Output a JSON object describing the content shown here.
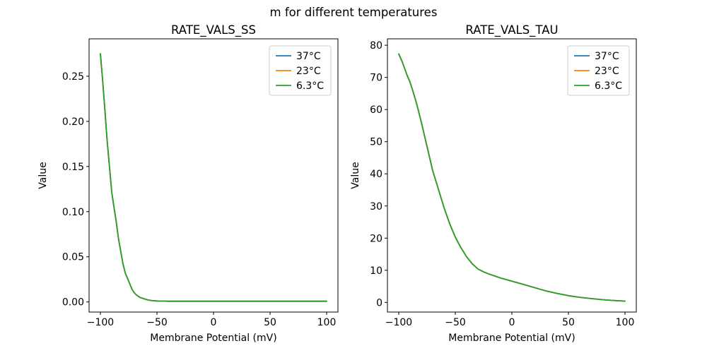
{
  "figure": {
    "suptitle": "m for different temperatures",
    "background": "#ffffff",
    "text_color": "#000000"
  },
  "chart_data": [
    {
      "type": "line",
      "title": "RATE_VALS_SS",
      "xlabel": "Membrane Potential (mV)",
      "ylabel": "Value",
      "xlim": [
        -110,
        110
      ],
      "ylim": [
        -0.0112,
        0.2914
      ],
      "xticks": [
        -100,
        -50,
        0,
        50,
        100
      ],
      "xtick_labels": [
        "−100",
        "−50",
        "0",
        "50",
        "100"
      ],
      "yticks": [
        0.0,
        0.05,
        0.1,
        0.15,
        0.2,
        0.25
      ],
      "ytick_labels": [
        "0.00",
        "0.05",
        "0.10",
        "0.15",
        "0.20",
        "0.25"
      ],
      "grid": false,
      "legend_position": "upper right",
      "series_overlap_note": "All three temperature curves coincide exactly; only the last-drawn (6.3°C, green) is visible.",
      "series": [
        {
          "name": "37C",
          "label": "37°C",
          "color": "#1f77b4"
        },
        {
          "name": "23C",
          "label": "23°C",
          "color": "#ff7f0e"
        },
        {
          "name": "6.3C",
          "label": "6.3°C",
          "color": "#2ca02c"
        }
      ],
      "x": [
        -100,
        -98,
        -96,
        -94,
        -92,
        -90,
        -88,
        -86,
        -84,
        -82,
        -80,
        -78,
        -76,
        -74,
        -72,
        -70,
        -68,
        -65,
        -62,
        -58,
        -54,
        -50,
        -45,
        -40,
        -30,
        -20,
        -10,
        0,
        20,
        40,
        60,
        80,
        100
      ],
      "y_shared": [
        0.275,
        0.245,
        0.212,
        0.178,
        0.15,
        0.122,
        0.105,
        0.089,
        0.07,
        0.056,
        0.042,
        0.032,
        0.026,
        0.02,
        0.014,
        0.01,
        0.0076,
        0.005,
        0.0037,
        0.0022,
        0.0014,
        0.0011,
        0.0009,
        0.0008,
        0.0008,
        0.0008,
        0.0008,
        0.0008,
        0.0008,
        0.0008,
        0.0008,
        0.0008,
        0.0008
      ]
    },
    {
      "type": "line",
      "title": "RATE_VALS_TAU",
      "xlabel": "Membrane Potential (mV)",
      "ylabel": "Value",
      "xlim": [
        -110,
        110
      ],
      "ylim": [
        -3.0,
        82.0
      ],
      "xticks": [
        -100,
        -50,
        0,
        50,
        100
      ],
      "xtick_labels": [
        "−100",
        "−50",
        "0",
        "50",
        "100"
      ],
      "yticks": [
        0,
        10,
        20,
        30,
        40,
        50,
        60,
        70,
        80
      ],
      "ytick_labels": [
        "0",
        "10",
        "20",
        "30",
        "40",
        "50",
        "60",
        "70",
        "80"
      ],
      "grid": false,
      "legend_position": "upper right",
      "series_overlap_note": "All three temperature curves coincide exactly; only the last-drawn (6.3°C, green) is visible.",
      "series": [
        {
          "name": "37C",
          "label": "37°C",
          "color": "#1f77b4"
        },
        {
          "name": "23C",
          "label": "23°C",
          "color": "#ff7f0e"
        },
        {
          "name": "6.3C",
          "label": "6.3°C",
          "color": "#2ca02c"
        }
      ],
      "x": [
        -100,
        -97,
        -95,
        -93,
        -90,
        -88,
        -85,
        -83,
        -80,
        -78,
        -75,
        -72,
        -70,
        -65,
        -60,
        -55,
        -50,
        -45,
        -40,
        -35,
        -30,
        -25,
        -20,
        -15,
        -10,
        -5,
        0,
        10,
        20,
        30,
        40,
        50,
        60,
        70,
        80,
        90,
        100
      ],
      "y_shared": [
        77.3,
        74.9,
        73.0,
        71.0,
        68.5,
        66.3,
        62.8,
        60.2,
        56.0,
        53.0,
        48.5,
        44.0,
        41.0,
        35.3,
        29.5,
        24.5,
        20.3,
        17.0,
        14.2,
        12.0,
        10.4,
        9.5,
        8.8,
        8.2,
        7.6,
        7.1,
        6.6,
        5.6,
        4.6,
        3.6,
        2.8,
        2.1,
        1.6,
        1.2,
        0.85,
        0.6,
        0.4
      ]
    }
  ]
}
